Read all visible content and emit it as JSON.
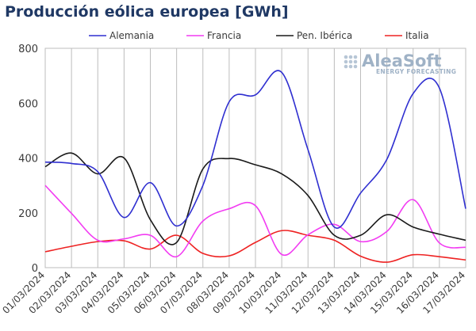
{
  "chart_data": {
    "type": "line",
    "title": "Producción eólica europea [GWh]",
    "ylim": [
      0,
      800
    ],
    "yticks": [
      0,
      200,
      400,
      600,
      800
    ],
    "grid": "vertical",
    "legend_position": "top",
    "categories": [
      "01/03/2024",
      "02/03/2024",
      "03/03/2024",
      "04/03/2024",
      "05/03/2024",
      "06/03/2024",
      "07/03/2024",
      "08/03/2024",
      "09/03/2024",
      "10/03/2024",
      "11/03/2024",
      "12/03/2024",
      "13/03/2024",
      "14/03/2024",
      "15/03/2024",
      "16/03/2024",
      "17/03/2024"
    ],
    "series": [
      {
        "name": "Alemania",
        "color": "#2f2fd0",
        "values": [
          385,
          380,
          350,
          183,
          310,
          152,
          300,
          605,
          630,
          712,
          430,
          148,
          272,
          395,
          635,
          655,
          215
        ]
      },
      {
        "name": "Francia",
        "color": "#f23cf2",
        "values": [
          300,
          198,
          100,
          105,
          118,
          40,
          170,
          215,
          226,
          48,
          120,
          158,
          95,
          132,
          248,
          90,
          74
        ]
      },
      {
        "name": "Pen. Ibérica",
        "color": "#1a1a1a",
        "values": [
          368,
          418,
          342,
          400,
          175,
          92,
          360,
          398,
          375,
          342,
          263,
          118,
          118,
          193,
          148,
          122,
          100
        ]
      },
      {
        "name": "Italia",
        "color": "#ee2222",
        "values": [
          58,
          78,
          95,
          98,
          68,
          118,
          52,
          43,
          92,
          135,
          118,
          100,
          42,
          20,
          47,
          40,
          28
        ]
      }
    ]
  },
  "logo": {
    "name": "AleaSoft",
    "tagline": "ENERGY FORECASTING"
  }
}
